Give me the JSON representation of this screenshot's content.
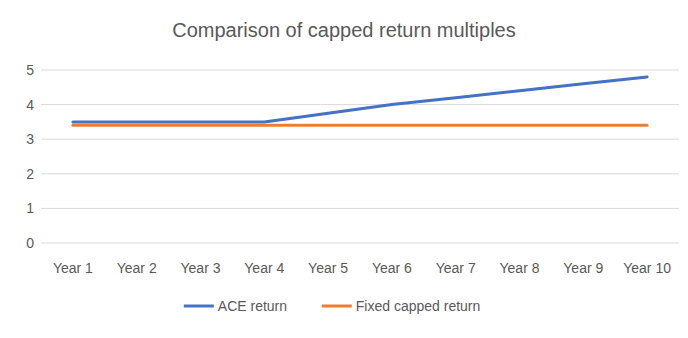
{
  "chart_data": {
    "type": "line",
    "title": "Comparison of capped return multiples",
    "categories": [
      "Year 1",
      "Year 2",
      "Year 3",
      "Year 4",
      "Year 5",
      "Year 6",
      "Year 7",
      "Year 8",
      "Year 9",
      "Year 10"
    ],
    "series": [
      {
        "name": "ACE return",
        "color": "#4472c4",
        "values": [
          3.5,
          3.5,
          3.5,
          3.5,
          3.75,
          4.0,
          4.2,
          4.4,
          4.6,
          4.8
        ]
      },
      {
        "name": "Fixed capped return",
        "color": "#ed7d31",
        "values": [
          3.4,
          3.4,
          3.4,
          3.4,
          3.4,
          3.4,
          3.4,
          3.4,
          3.4,
          3.4
        ]
      }
    ],
    "ylim": [
      0,
      5
    ],
    "yticks": [
      0,
      1,
      2,
      3,
      4,
      5
    ],
    "grid": true,
    "legend": "bottom"
  }
}
